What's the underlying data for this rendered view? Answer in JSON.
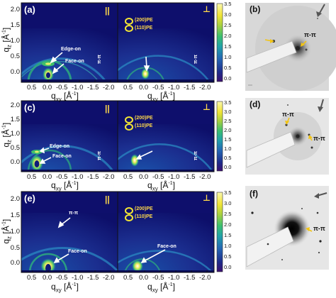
{
  "figure": {
    "colorbar_ticks": [
      "3.5",
      "3.0",
      "2.5",
      "2.0",
      "1.5",
      "1.0",
      "0.5",
      "0.0"
    ],
    "x_ticks": [
      "0.5",
      "0.0",
      "-0.5",
      "-1.0",
      "-1.5",
      "-2.0"
    ],
    "y_ticks": [
      "2.0",
      "1.5",
      "1.0",
      "0.5",
      "0.0"
    ],
    "x_axis_title": "q",
    "x_axis_sub": "xy",
    "x_axis_unit": " [Å",
    "x_axis_exp": "-1",
    "x_axis_close": "]",
    "y_axis_title": "q",
    "y_axis_sub": "z",
    "y_axis_unit": " [Å",
    "y_axis_exp": "-1",
    "y_axis_close": "]",
    "parallel_symbol": "||",
    "perp_symbol": "⊥",
    "pp_vertical": "π-π",
    "rows": [
      {
        "label": "(a)",
        "annotations": [
          "Edge-on",
          "Face-on"
        ],
        "pe_labels": [
          "(200)PE",
          "(110)PE"
        ],
        "pattern_label": "(b)",
        "pattern_annotations": [
          "π-π"
        ]
      },
      {
        "label": "(c)",
        "annotations": [
          "Edge-on",
          "Face-on"
        ],
        "pe_labels": [
          "(200)PE",
          "(110)PE"
        ],
        "pattern_label": "(d)",
        "pattern_annotations": [
          "π-π",
          "π-π"
        ]
      },
      {
        "label": "(e)",
        "annotations": [
          "π-π",
          "Face-on"
        ],
        "pe_labels": [
          "(200)PE",
          "(110)PE"
        ],
        "perp_annotation": "Face-on",
        "pattern_label": "(f)",
        "pattern_annotations": [
          "π-π"
        ]
      }
    ]
  }
}
